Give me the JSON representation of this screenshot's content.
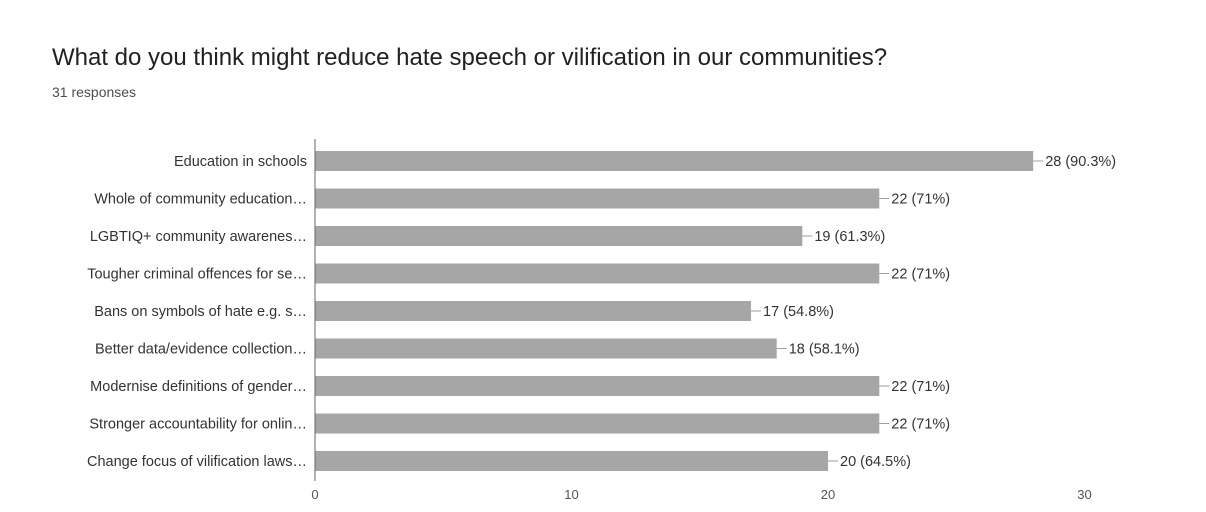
{
  "header": {
    "title": "What do you think might reduce hate speech or vilification in our communities?",
    "subtitle": "31 responses"
  },
  "colors": {
    "bar": "#a6a6a6",
    "axis": "#666666",
    "leader": "#9e9e9e"
  },
  "chart_data": {
    "type": "bar",
    "orientation": "horizontal",
    "title": "What do you think might reduce hate speech or vilification in our communities?",
    "subtitle": "31 responses",
    "categories": [
      "Education in schools",
      "Whole of community education…",
      "LGBTIQ+ community awarenes…",
      "Tougher criminal offences for se…",
      "Bans on symbols of hate e.g. s…",
      "Better data/evidence collection…",
      "Modernise definitions of gender…",
      "Stronger accountability for onlin…",
      "Change focus of vilification laws…"
    ],
    "values": [
      28,
      22,
      19,
      22,
      17,
      18,
      22,
      22,
      20
    ],
    "data_labels": [
      "28 (90.3%)",
      "22 (71%)",
      "19 (61.3%)",
      "22 (71%)",
      "17 (54.8%)",
      "18 (58.1%)",
      "22 (71%)",
      "22 (71%)",
      "20 (64.5%)"
    ],
    "xlim": [
      0,
      30
    ],
    "xticks": [
      "0",
      "10",
      "20",
      "30"
    ],
    "grid": false,
    "legend": "none"
  }
}
